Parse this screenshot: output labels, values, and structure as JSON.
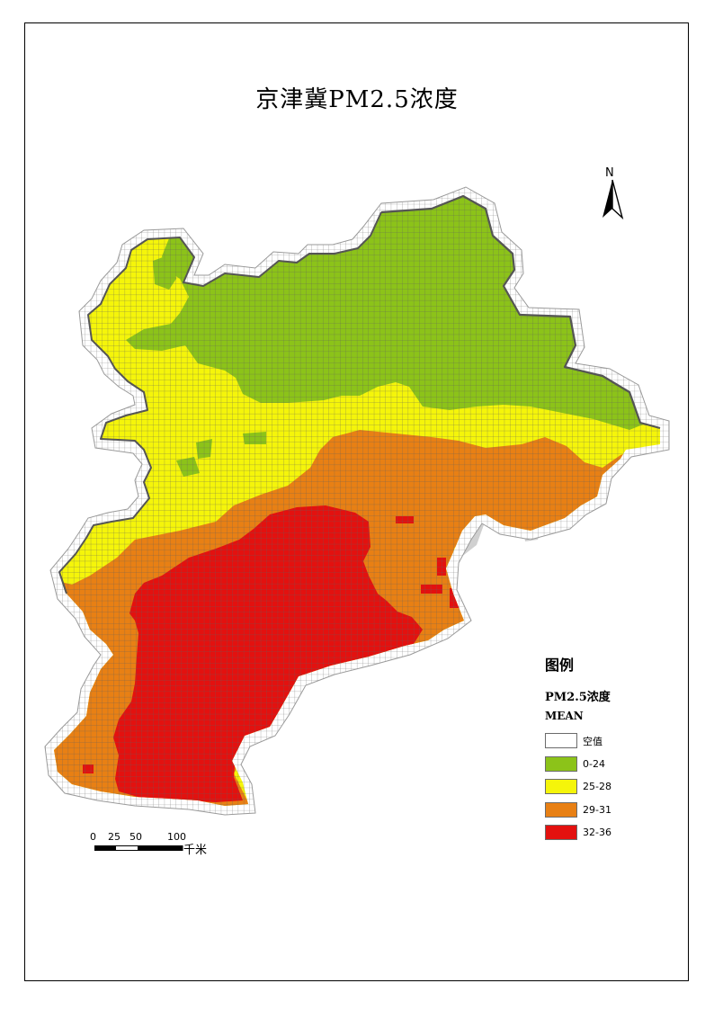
{
  "title": "京津冀PM2.5浓度",
  "north_label": "N",
  "legend": {
    "title": "图例",
    "field": "PM2.5浓度",
    "stat": "MEAN",
    "items": [
      {
        "label": "空值",
        "color": "#ffffff"
      },
      {
        "label": "0-24",
        "color": "#8cc319"
      },
      {
        "label": "25-28",
        "color": "#f5f50a"
      },
      {
        "label": "29-31",
        "color": "#e88014"
      },
      {
        "label": "32-36",
        "color": "#e3110f"
      }
    ]
  },
  "scale_bar": {
    "ticks": [
      "0",
      "25",
      "50",
      "100"
    ],
    "unit": "千米"
  },
  "colors": {
    "grid_line": "#7a7a7a",
    "null_cell_outline": "#9a9a9a",
    "sea_gray": "#bdbdbd"
  }
}
